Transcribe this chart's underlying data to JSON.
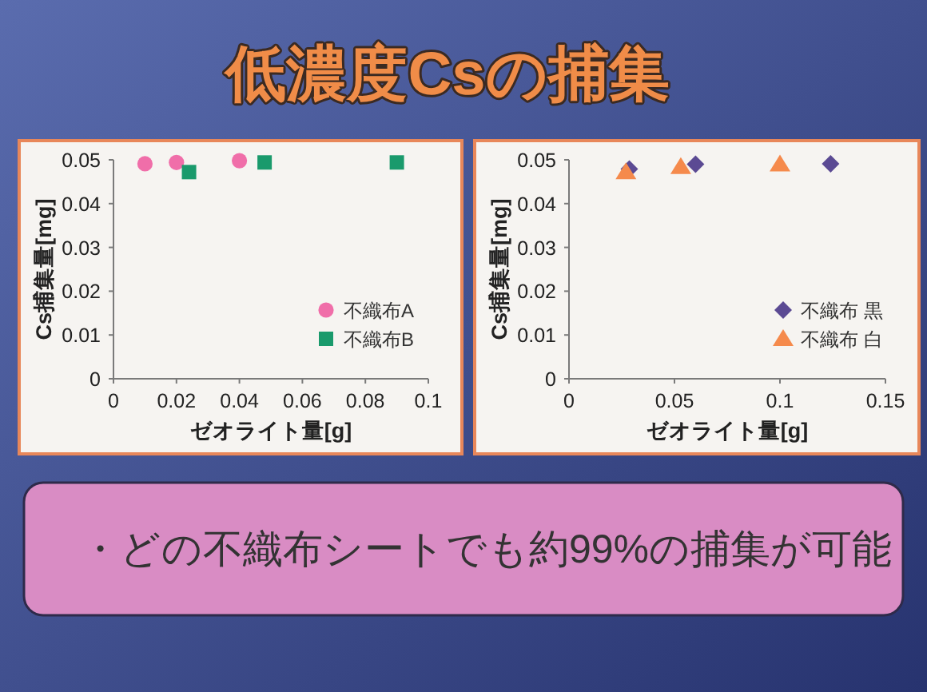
{
  "chart_data": [
    {
      "type": "scatter",
      "title": "低濃度Csの捕集",
      "xlabel": "ゼオライト量[g]",
      "ylabel": "Cs捕集量[mg]",
      "xlim": [
        0,
        0.1
      ],
      "xticks": [
        0,
        0.02,
        0.04,
        0.06,
        0.08,
        0.1
      ],
      "ylim": [
        0,
        0.05
      ],
      "yticks": [
        0,
        0.01,
        0.02,
        0.03,
        0.04,
        0.05
      ],
      "legend": "bottom right",
      "series": [
        {
          "name": "不織布A",
          "color": "#f06ea9",
          "marker": "circle",
          "x": [
            0.01,
            0.02,
            0.04
          ],
          "values": [
            0.0491,
            0.0494,
            0.0498
          ]
        },
        {
          "name": "不織布B",
          "color": "#1a9a6c",
          "marker": "square",
          "x": [
            0.024,
            0.048,
            0.09
          ],
          "values": [
            0.0472,
            0.0494,
            0.0494
          ]
        }
      ]
    },
    {
      "type": "scatter",
      "xlabel": "ゼオライト量[g]",
      "ylabel": "Cs捕集量[mg]",
      "xlim": [
        0,
        0.15
      ],
      "xticks": [
        0,
        0.05,
        0.1,
        0.15
      ],
      "ylim": [
        0,
        0.05
      ],
      "yticks": [
        0,
        0.01,
        0.02,
        0.03,
        0.04,
        0.05
      ],
      "legend": "bottom right",
      "series": [
        {
          "name": "不織布 黒",
          "color": "#5b4a93",
          "marker": "diamond",
          "x": [
            0.0286,
            0.06,
            0.124
          ],
          "values": [
            0.0479,
            0.049,
            0.0491
          ]
        },
        {
          "name": "不織布 白",
          "color": "#f58a4c",
          "marker": "triangle",
          "x": [
            0.027,
            0.053,
            0.1
          ],
          "values": [
            0.0472,
            0.0484,
            0.049
          ]
        }
      ]
    },
    {
      "type": "other",
      "annotations": [
        "・どの不織布シートでも約99%の捕集が可能"
      ]
    }
  ]
}
